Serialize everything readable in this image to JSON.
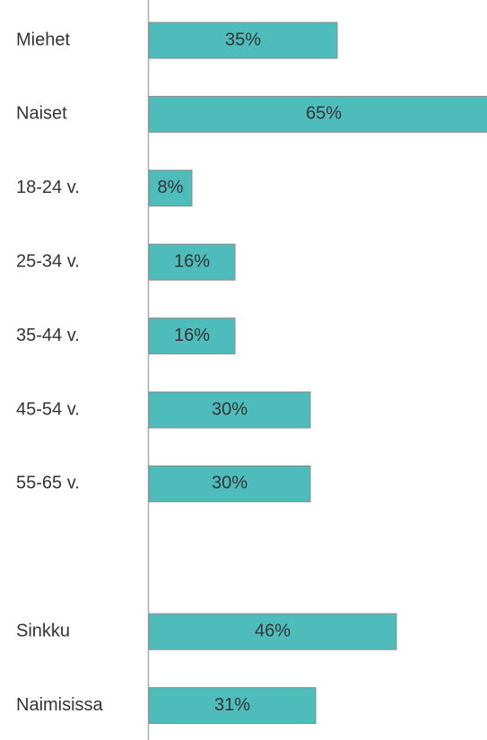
{
  "chart_data": {
    "type": "bar",
    "orientation": "horizontal",
    "categories": [
      "Miehet",
      "Naiset",
      "18-24 v.",
      "25-34 v.",
      "35-44 v.",
      "45-54 v.",
      "55-65 v.",
      null,
      "Sinkku",
      "Naimisissa"
    ],
    "values": [
      35,
      65,
      8,
      16,
      16,
      30,
      30,
      null,
      46,
      31
    ],
    "value_labels": [
      "35%",
      "65%",
      "8%",
      "16%",
      "16%",
      "30%",
      "30%",
      null,
      "46%",
      "31%"
    ],
    "color": "#4fbcbc"
  }
}
